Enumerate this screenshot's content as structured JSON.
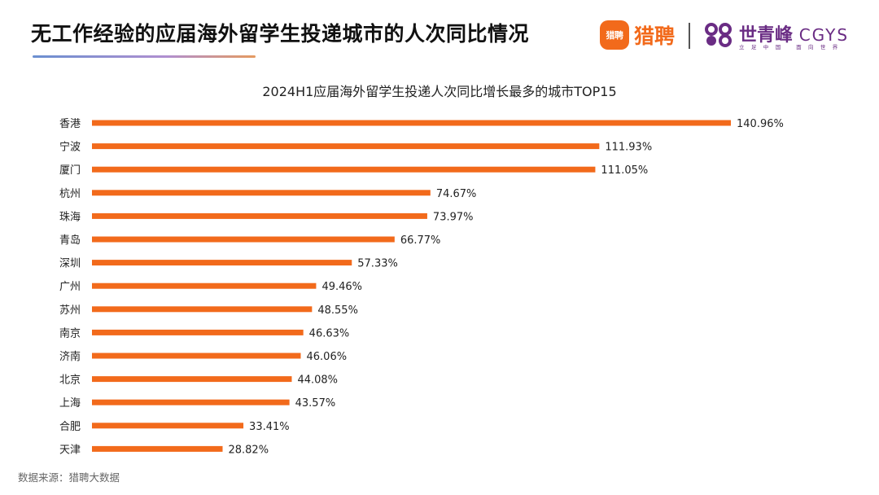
{
  "header": {
    "title": "无工作经验的应届海外留学生投递城市的人次同比情况",
    "logo_liepin": {
      "badge_text": "猎聘",
      "text": "猎聘",
      "color": "#f26a1b"
    },
    "logo_cgys": {
      "name_cn": "世青峰",
      "name_latin": "CGYS",
      "tagline": "立足中国 面向世界",
      "color": "#6a2c84"
    }
  },
  "source": "数据来源：猎聘大数据",
  "chart_data": {
    "type": "bar",
    "orientation": "horizontal",
    "title": "2024H1应届海外留学生投递人次同比增长最多的城市TOP15",
    "categories": [
      "香港",
      "宁波",
      "厦门",
      "杭州",
      "珠海",
      "青岛",
      "深圳",
      "广州",
      "苏州",
      "南京",
      "济南",
      "北京",
      "上海",
      "合肥",
      "天津"
    ],
    "values": [
      140.96,
      111.93,
      111.05,
      74.67,
      73.97,
      66.77,
      57.33,
      49.46,
      48.55,
      46.63,
      46.06,
      44.08,
      43.57,
      33.41,
      28.82
    ],
    "value_labels": [
      "140.96%",
      "111.93%",
      "111.05%",
      "74.67%",
      "73.97%",
      "66.77%",
      "57.33%",
      "49.46%",
      "48.55%",
      "46.63%",
      "46.06%",
      "44.08%",
      "43.57%",
      "33.41%",
      "28.82%"
    ],
    "unit": "%",
    "xlim": [
      0,
      140.96
    ],
    "bar_color": "#f26a1b",
    "grid": false,
    "legend": "none",
    "xlabel": "",
    "ylabel": ""
  }
}
